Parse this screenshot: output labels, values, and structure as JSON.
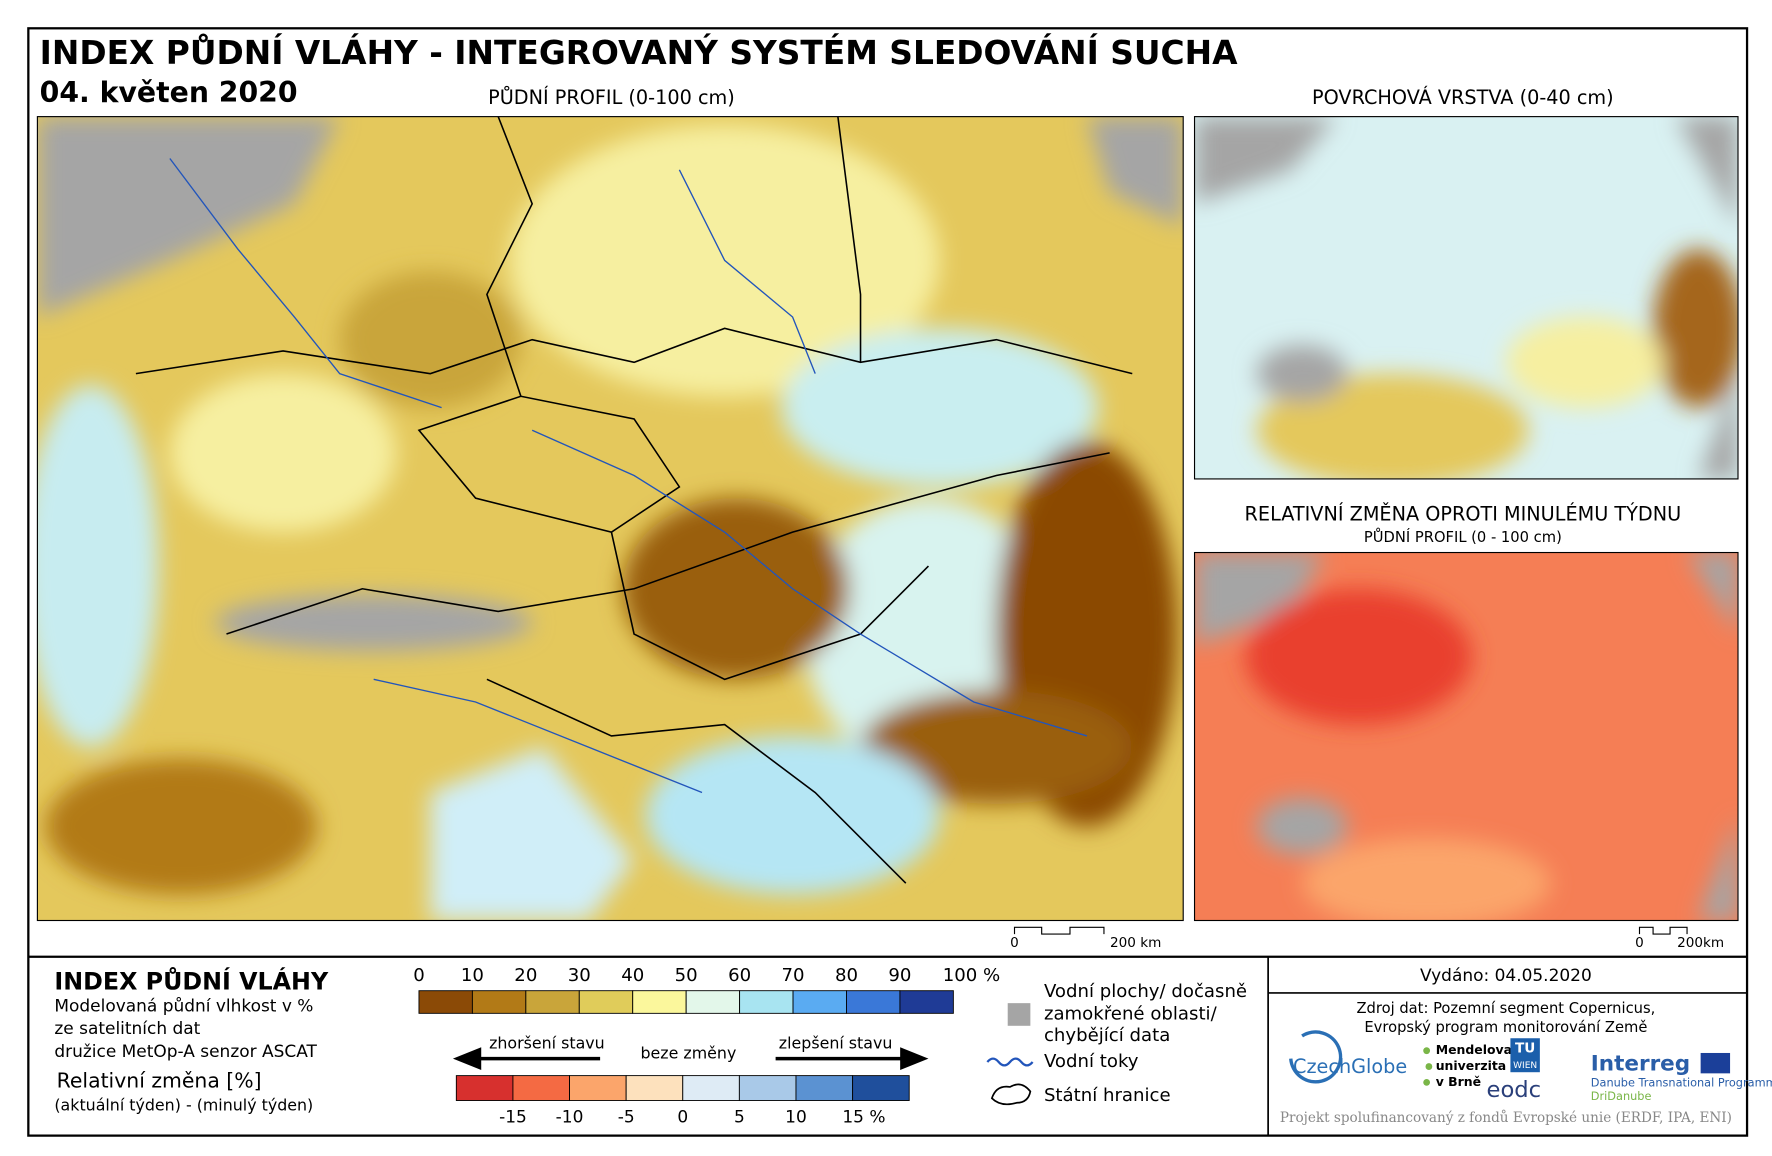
{
  "header": {
    "title": "INDEX PŮDNÍ VLÁHY - INTEGROVANÝ SYSTÉM SLEDOVÁNÍ SUCHA",
    "date": "04. květen 2020"
  },
  "panels": {
    "main": "PŮDNÍ PROFIL (0-100 cm)",
    "surface": "POVRCHOVÁ VRSTVA (0-40 cm)",
    "change_title": "RELATIVNÍ ZMĚNA OPROTI MINULÉMU TÝDNU",
    "change_subtitle": "PŮDNÍ PROFIL (0 - 100 cm)"
  },
  "scalebar": {
    "start": "0",
    "end": "200 km",
    "end_small": "200km"
  },
  "legend": {
    "title": "INDEX PŮDNÍ VLÁHY",
    "lines": [
      "Modelovaná půdní vlhkost v %",
      "ze satelitních dat",
      "družice MetOp-A senzor ASCAT"
    ],
    "change_title": "Relativní změna [%]",
    "change_subtitle": "(aktuální týden) - (minulý týden)",
    "index_ticks": [
      "0",
      "10",
      "20",
      "30",
      "40",
      "50",
      "60",
      "70",
      "80",
      "90",
      "100 %"
    ],
    "index_colors": [
      "#8b4a06",
      "#b27a17",
      "#c9a53a",
      "#e0cc5a",
      "#fbf79c",
      "#e3f7ea",
      "#a8e4f1",
      "#5aabf2",
      "#3a78d8",
      "#1f3b96"
    ],
    "worse": "zhoršení stavu",
    "same": "beze změny",
    "better": "zlepšení stavu",
    "change_ticks": [
      "-15",
      "-10",
      "-5",
      "0",
      "5",
      "10",
      "15 %"
    ],
    "change_colors": [
      "#d7302e",
      "#f46a43",
      "#fba56b",
      "#fde1bd",
      "#deebf5",
      "#a9c9e8",
      "#5b92d2",
      "#1f4f9c"
    ],
    "water": [
      "Vodní plochy/ dočasně",
      "zamokřené oblasti/",
      "chybějící data"
    ],
    "rivers": "Vodní toky",
    "borders": "Státní hranice"
  },
  "info": {
    "issued": "Vydáno: 04.05.2020",
    "source": [
      "Zdroj dat: Pozemní segment Copernicus,",
      "Evropský program monitorování Země"
    ],
    "logos": [
      "CzechGlobe",
      "Mendelova",
      "univerzita",
      "v Brně",
      "TU",
      "WIEN",
      "eodc",
      "Interreg",
      "Danube Transnational Programme",
      "DriDanube"
    ],
    "footer": "Projekt spolufinancovaný z fondů Evropské unie (ERDF, IPA, ENI)"
  }
}
